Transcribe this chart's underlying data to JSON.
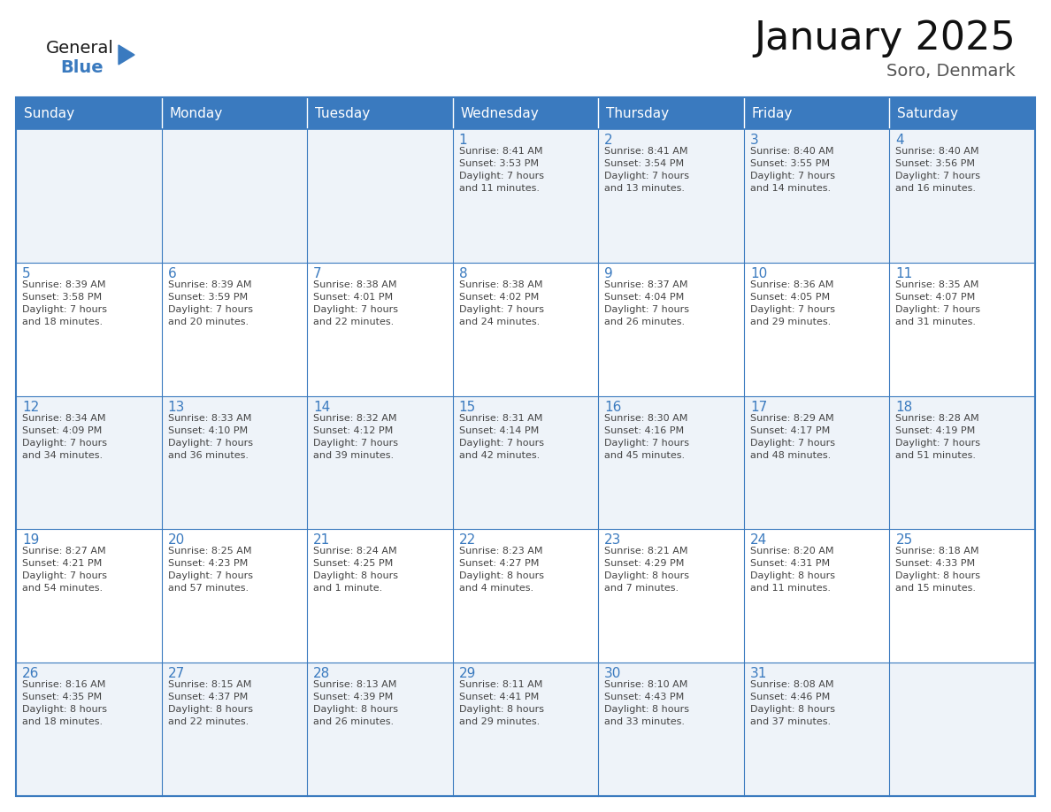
{
  "title": "January 2025",
  "subtitle": "Soro, Denmark",
  "header_color": "#3a7abf",
  "header_text_color": "#ffffff",
  "cell_bg_even": "#eef3f9",
  "cell_bg_odd": "#ffffff",
  "border_color": "#3a7abf",
  "text_color": "#444444",
  "day_num_color": "#3a7abf",
  "days_of_week": [
    "Sunday",
    "Monday",
    "Tuesday",
    "Wednesday",
    "Thursday",
    "Friday",
    "Saturday"
  ],
  "weeks": [
    [
      {
        "day": "",
        "info": ""
      },
      {
        "day": "",
        "info": ""
      },
      {
        "day": "",
        "info": ""
      },
      {
        "day": "1",
        "info": "Sunrise: 8:41 AM\nSunset: 3:53 PM\nDaylight: 7 hours\nand 11 minutes."
      },
      {
        "day": "2",
        "info": "Sunrise: 8:41 AM\nSunset: 3:54 PM\nDaylight: 7 hours\nand 13 minutes."
      },
      {
        "day": "3",
        "info": "Sunrise: 8:40 AM\nSunset: 3:55 PM\nDaylight: 7 hours\nand 14 minutes."
      },
      {
        "day": "4",
        "info": "Sunrise: 8:40 AM\nSunset: 3:56 PM\nDaylight: 7 hours\nand 16 minutes."
      }
    ],
    [
      {
        "day": "5",
        "info": "Sunrise: 8:39 AM\nSunset: 3:58 PM\nDaylight: 7 hours\nand 18 minutes."
      },
      {
        "day": "6",
        "info": "Sunrise: 8:39 AM\nSunset: 3:59 PM\nDaylight: 7 hours\nand 20 minutes."
      },
      {
        "day": "7",
        "info": "Sunrise: 8:38 AM\nSunset: 4:01 PM\nDaylight: 7 hours\nand 22 minutes."
      },
      {
        "day": "8",
        "info": "Sunrise: 8:38 AM\nSunset: 4:02 PM\nDaylight: 7 hours\nand 24 minutes."
      },
      {
        "day": "9",
        "info": "Sunrise: 8:37 AM\nSunset: 4:04 PM\nDaylight: 7 hours\nand 26 minutes."
      },
      {
        "day": "10",
        "info": "Sunrise: 8:36 AM\nSunset: 4:05 PM\nDaylight: 7 hours\nand 29 minutes."
      },
      {
        "day": "11",
        "info": "Sunrise: 8:35 AM\nSunset: 4:07 PM\nDaylight: 7 hours\nand 31 minutes."
      }
    ],
    [
      {
        "day": "12",
        "info": "Sunrise: 8:34 AM\nSunset: 4:09 PM\nDaylight: 7 hours\nand 34 minutes."
      },
      {
        "day": "13",
        "info": "Sunrise: 8:33 AM\nSunset: 4:10 PM\nDaylight: 7 hours\nand 36 minutes."
      },
      {
        "day": "14",
        "info": "Sunrise: 8:32 AM\nSunset: 4:12 PM\nDaylight: 7 hours\nand 39 minutes."
      },
      {
        "day": "15",
        "info": "Sunrise: 8:31 AM\nSunset: 4:14 PM\nDaylight: 7 hours\nand 42 minutes."
      },
      {
        "day": "16",
        "info": "Sunrise: 8:30 AM\nSunset: 4:16 PM\nDaylight: 7 hours\nand 45 minutes."
      },
      {
        "day": "17",
        "info": "Sunrise: 8:29 AM\nSunset: 4:17 PM\nDaylight: 7 hours\nand 48 minutes."
      },
      {
        "day": "18",
        "info": "Sunrise: 8:28 AM\nSunset: 4:19 PM\nDaylight: 7 hours\nand 51 minutes."
      }
    ],
    [
      {
        "day": "19",
        "info": "Sunrise: 8:27 AM\nSunset: 4:21 PM\nDaylight: 7 hours\nand 54 minutes."
      },
      {
        "day": "20",
        "info": "Sunrise: 8:25 AM\nSunset: 4:23 PM\nDaylight: 7 hours\nand 57 minutes."
      },
      {
        "day": "21",
        "info": "Sunrise: 8:24 AM\nSunset: 4:25 PM\nDaylight: 8 hours\nand 1 minute."
      },
      {
        "day": "22",
        "info": "Sunrise: 8:23 AM\nSunset: 4:27 PM\nDaylight: 8 hours\nand 4 minutes."
      },
      {
        "day": "23",
        "info": "Sunrise: 8:21 AM\nSunset: 4:29 PM\nDaylight: 8 hours\nand 7 minutes."
      },
      {
        "day": "24",
        "info": "Sunrise: 8:20 AM\nSunset: 4:31 PM\nDaylight: 8 hours\nand 11 minutes."
      },
      {
        "day": "25",
        "info": "Sunrise: 8:18 AM\nSunset: 4:33 PM\nDaylight: 8 hours\nand 15 minutes."
      }
    ],
    [
      {
        "day": "26",
        "info": "Sunrise: 8:16 AM\nSunset: 4:35 PM\nDaylight: 8 hours\nand 18 minutes."
      },
      {
        "day": "27",
        "info": "Sunrise: 8:15 AM\nSunset: 4:37 PM\nDaylight: 8 hours\nand 22 minutes."
      },
      {
        "day": "28",
        "info": "Sunrise: 8:13 AM\nSunset: 4:39 PM\nDaylight: 8 hours\nand 26 minutes."
      },
      {
        "day": "29",
        "info": "Sunrise: 8:11 AM\nSunset: 4:41 PM\nDaylight: 8 hours\nand 29 minutes."
      },
      {
        "day": "30",
        "info": "Sunrise: 8:10 AM\nSunset: 4:43 PM\nDaylight: 8 hours\nand 33 minutes."
      },
      {
        "day": "31",
        "info": "Sunrise: 8:08 AM\nSunset: 4:46 PM\nDaylight: 8 hours\nand 37 minutes."
      },
      {
        "day": "",
        "info": ""
      }
    ]
  ]
}
